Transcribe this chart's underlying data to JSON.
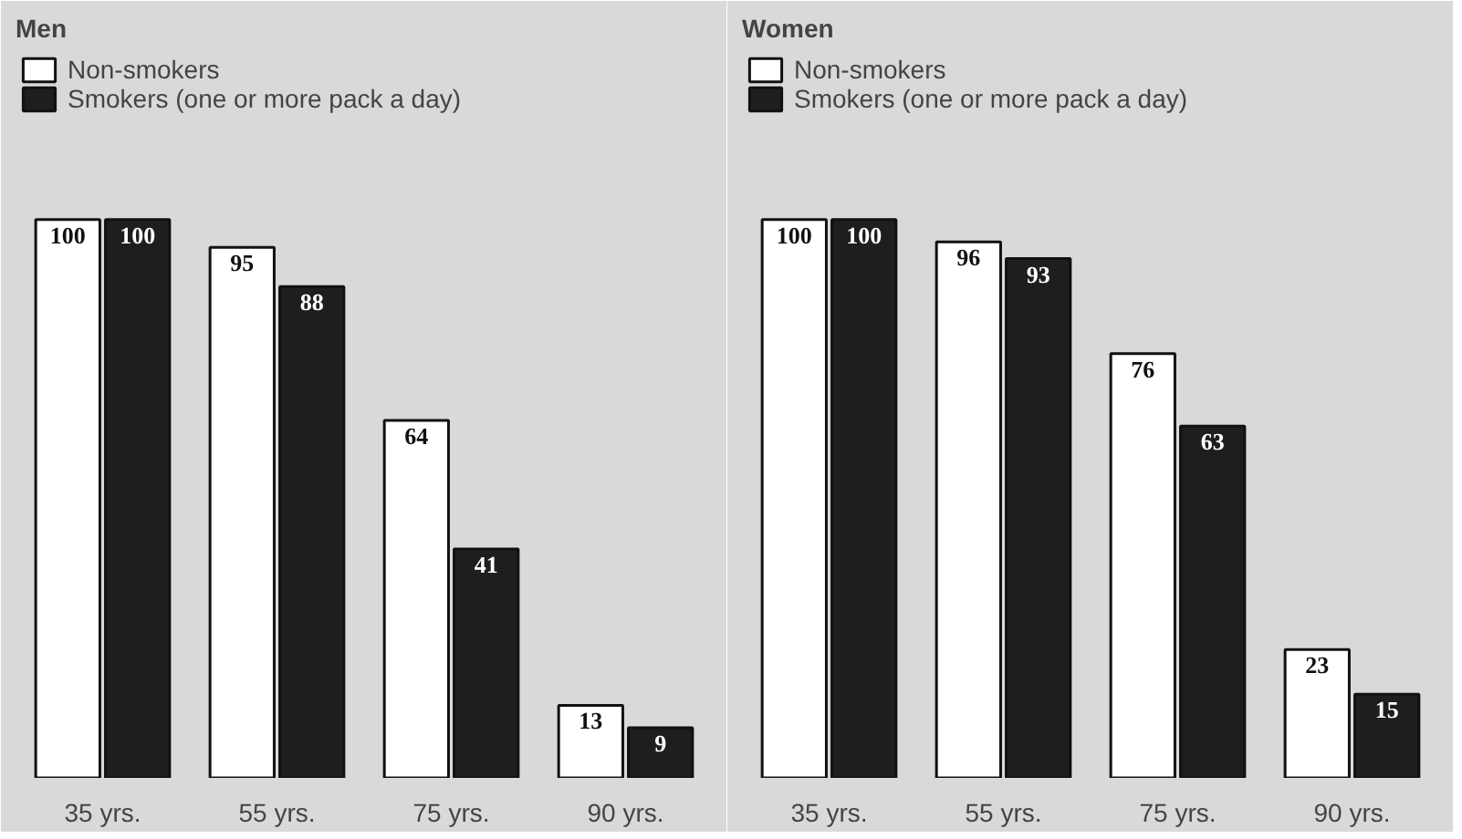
{
  "chart_data": [
    {
      "type": "bar",
      "title": "Men",
      "categories": [
        "35 yrs.",
        "55 yrs.",
        "75 yrs.",
        "90 yrs."
      ],
      "series": [
        {
          "name": "Non-smokers",
          "color": "#ffffff",
          "values": [
            100,
            95,
            64,
            13
          ]
        },
        {
          "name": "Smokers (one or more pack a day)",
          "color": "#1e1e1e",
          "values": [
            100,
            88,
            41,
            9
          ]
        }
      ],
      "data_labels": true,
      "legend": "top left",
      "grid": false
    },
    {
      "type": "bar",
      "title": "Women",
      "categories": [
        "35 yrs.",
        "55 yrs.",
        "75 yrs.",
        "90 yrs."
      ],
      "series": [
        {
          "name": "Non-smokers",
          "color": "#ffffff",
          "values": [
            100,
            96,
            76,
            23
          ]
        },
        {
          "name": "Smokers (one or more pack a day)",
          "color": "#1e1e1e",
          "values": [
            100,
            93,
            63,
            15
          ]
        }
      ],
      "data_labels": true,
      "legend": "top left",
      "grid": false
    }
  ]
}
